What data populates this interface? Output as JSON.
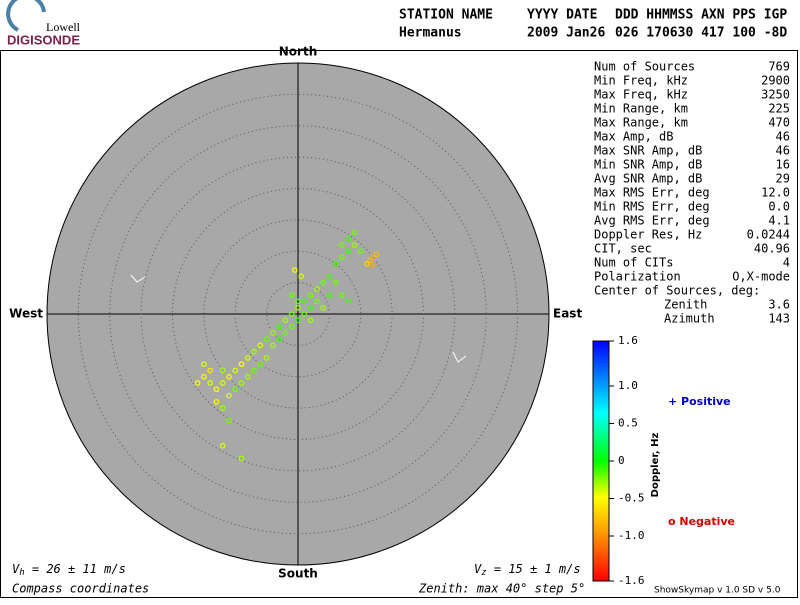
{
  "logo": {
    "top": "Lowell",
    "bottom": "DIGISONDE"
  },
  "header": {
    "labels": [
      "STATION NAME",
      "YYYY DATE",
      "DDD HHMMSS AXN PPS IGP"
    ],
    "values": [
      "Hermanus",
      "2009 Jan26",
      "026 170630 417 100 -8D"
    ]
  },
  "compass": {
    "north": "North",
    "east": "East",
    "south": "South",
    "west": "West"
  },
  "stats": [
    [
      "Num of Sources",
      "769"
    ],
    [
      "Min Freq, kHz",
      "2900"
    ],
    [
      "Max Freq, kHz",
      "3250"
    ],
    [
      "Min Range, km",
      "225"
    ],
    [
      "Max Range, km",
      "470"
    ],
    [
      "Max Amp, dB",
      "46"
    ],
    [
      "Max SNR Amp, dB",
      "46"
    ],
    [
      "Min SNR Amp, dB",
      "16"
    ],
    [
      "Avg SNR Amp, dB",
      "29"
    ],
    [
      "Max RMS Err, deg",
      "12.0"
    ],
    [
      "Min RMS Err, deg",
      "0.0"
    ],
    [
      "Avg RMS Err, deg",
      "4.1"
    ],
    [
      "Doppler Res, Hz",
      "0.0244"
    ],
    [
      "CIT, sec",
      "40.96"
    ],
    [
      "Num of CITs",
      "4"
    ],
    [
      "Polarization",
      "O,X-mode"
    ]
  ],
  "center": {
    "title": "Center of Sources, deg:",
    "rows": [
      [
        "Zenith",
        "3.6"
      ],
      [
        "Azimuth",
        "143"
      ]
    ]
  },
  "colorbar": {
    "title": "Doppler, Hz",
    "lim": [
      -1.6,
      1.6
    ],
    "ticks": [
      1.6,
      {
        "value": 1.0,
        "label": "1.0"
      },
      0.5,
      0,
      -0.5,
      {
        "value": -1.0,
        "label": "-1.0"
      },
      -1.6
    ]
  },
  "legend": {
    "positive": "+ Positive",
    "negative": "o Negative"
  },
  "footer": {
    "vh": {
      "symbol": "V",
      "sub": "h",
      "text": " = 26 ± 11 m/s"
    },
    "vz": {
      "symbol": "V",
      "sub": "z",
      "text": " = 15 ± 1 m/s"
    },
    "coords": "Compass coordinates",
    "zenith": "Zenith: max 40°  step 5°",
    "version": "ShowSkymap v 1.0   SD v 5.0"
  },
  "skymap": {
    "zenith_max": 40,
    "zenith_step": 5,
    "sources": [
      [
        7,
        11,
        -0.2
      ],
      [
        8,
        12,
        -0.1
      ],
      [
        9,
        13,
        -0.2
      ],
      [
        8,
        10,
        -0.1
      ],
      [
        9,
        11,
        -0.3
      ],
      [
        7,
        9,
        -0.2
      ],
      [
        6,
        8,
        -0.1
      ],
      [
        10,
        10,
        -0.2
      ],
      [
        11.5,
        8.5,
        -0.8
      ],
      [
        12,
        9,
        -0.9
      ],
      [
        11,
        8,
        -0.7
      ],
      [
        12.5,
        9.5,
        -0.8
      ],
      [
        11.8,
        7.8,
        -0.9
      ],
      [
        5,
        6,
        -0.1
      ],
      [
        4,
        5,
        -0.2
      ],
      [
        6,
        5,
        -0.2
      ],
      [
        3,
        4,
        -0.3
      ],
      [
        5,
        3,
        -0.1
      ],
      [
        2,
        3,
        -0.2
      ],
      [
        1,
        2,
        -0.1
      ],
      [
        3,
        2,
        -0.2
      ],
      [
        0,
        1,
        -0.3
      ],
      [
        1,
        0,
        -0.2
      ],
      [
        2,
        1,
        -0.1
      ],
      [
        -1,
        0,
        -0.2
      ],
      [
        0,
        -1,
        -0.1
      ],
      [
        -2,
        -1,
        -0.3
      ],
      [
        -1,
        -2,
        -0.2
      ],
      [
        -3,
        -2,
        -0.1
      ],
      [
        -2,
        -3,
        -0.2
      ],
      [
        -4,
        -3,
        -0.3
      ],
      [
        -3,
        -4,
        -0.1
      ],
      [
        -5,
        -4,
        -0.2
      ],
      [
        -4,
        -5,
        -0.3
      ],
      [
        -6,
        -5,
        -0.4
      ],
      [
        0,
        2,
        -0.2
      ],
      [
        2,
        -1,
        -0.3
      ],
      [
        -1,
        3,
        -0.2
      ],
      [
        0.5,
        6,
        -0.4
      ],
      [
        -0.5,
        7,
        -0.5
      ],
      [
        4,
        1,
        -0.3
      ],
      [
        7,
        3,
        -0.2
      ],
      [
        8,
        2,
        -0.1
      ],
      [
        -7,
        -6,
        -0.3
      ],
      [
        -8,
        -7,
        -0.4
      ],
      [
        -9,
        -8,
        -0.5
      ],
      [
        -10,
        -9,
        -0.4
      ],
      [
        -11,
        -10,
        -0.5
      ],
      [
        -12,
        -11,
        -0.4
      ],
      [
        -13,
        -12,
        -0.5
      ],
      [
        -14,
        -11,
        -0.4
      ],
      [
        -15,
        -10,
        -0.5
      ],
      [
        -14,
        -9,
        -0.6
      ],
      [
        -12,
        -9,
        -0.3
      ],
      [
        -10,
        -12,
        -0.2
      ],
      [
        -9,
        -11,
        -0.3
      ],
      [
        -8,
        -10,
        -0.3
      ],
      [
        -7,
        -9,
        -0.2
      ],
      [
        -11,
        -13,
        -0.4
      ],
      [
        -13,
        -14,
        -0.5
      ],
      [
        -12,
        -15,
        -0.3
      ],
      [
        -11,
        -17,
        -0.2
      ],
      [
        -9,
        -23,
        -0.3
      ],
      [
        -12,
        -21,
        -0.4
      ],
      [
        -6,
        -8,
        -0.2
      ],
      [
        -5,
        -7,
        -0.3
      ],
      [
        -15,
        -8,
        -0.4
      ],
      [
        -16,
        -11,
        -0.5
      ]
    ]
  }
}
